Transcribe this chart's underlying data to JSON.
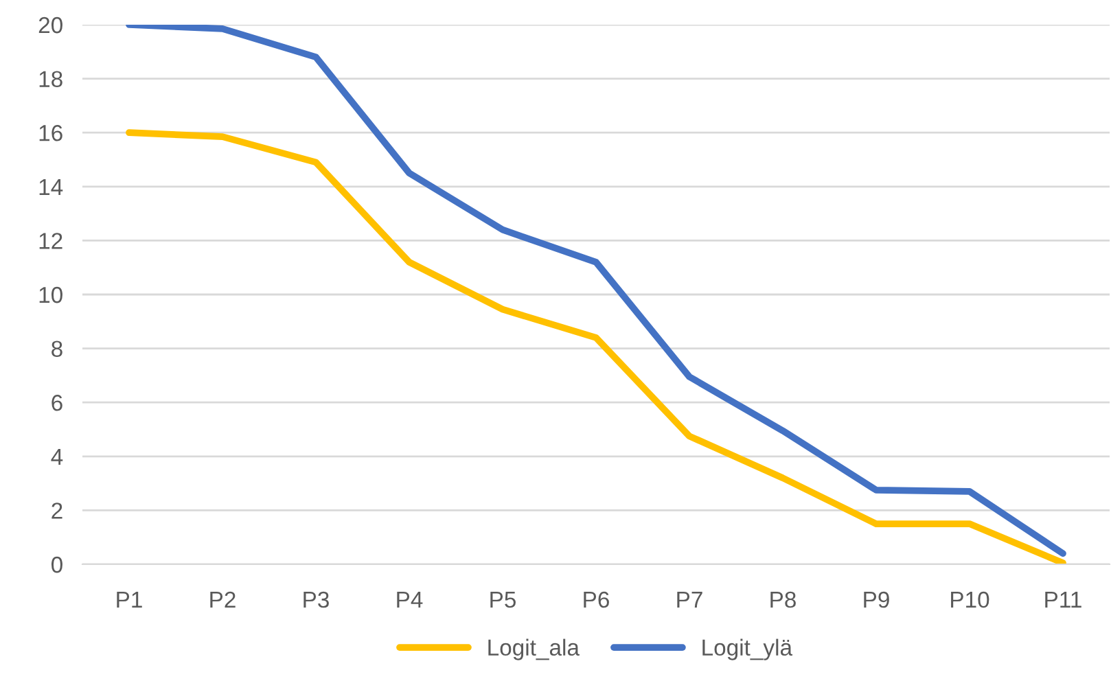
{
  "chart_data": {
    "type": "line",
    "categories": [
      "P1",
      "P2",
      "P3",
      "P4",
      "P5",
      "P6",
      "P7",
      "P8",
      "P9",
      "P10",
      "P11"
    ],
    "series": [
      {
        "name": "Logit_ala",
        "color": "#ffc000",
        "values": [
          16.0,
          15.85,
          14.9,
          11.2,
          9.45,
          8.4,
          4.75,
          3.2,
          1.5,
          1.5,
          0.05
        ]
      },
      {
        "name": "Logit_ylä",
        "color": "#4472c4",
        "values": [
          20.0,
          19.85,
          18.8,
          14.5,
          12.4,
          11.2,
          6.95,
          4.95,
          2.75,
          2.7,
          0.4
        ]
      }
    ],
    "ylim": [
      0,
      20
    ],
    "yticks": [
      0,
      2,
      4,
      6,
      8,
      10,
      12,
      14,
      16,
      18,
      20
    ],
    "grid": "y",
    "legend": "bottom",
    "marker": "none",
    "line_style": "solid"
  }
}
